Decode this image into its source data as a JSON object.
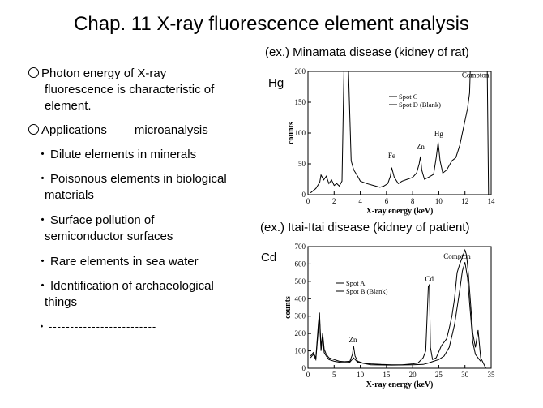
{
  "slide": {
    "title": "Chap. 11  X-ray fluorescence element analysis",
    "bullet1": [
      "Photon energy of X-ray",
      "fluorescence is characteristic of",
      "element."
    ],
    "bullet2_label": "Applications",
    "bullet2_rest": "microanalysis",
    "sub_items": [
      [
        "Dilute elements in minerals"
      ],
      [
        "Poisonous elements in biological",
        "materials"
      ],
      [
        "Surface pollution of",
        "semiconductor surfaces"
      ],
      [
        "Rare elements in sea water"
      ],
      [
        "Identification of archaeological",
        "things"
      ]
    ],
    "last_sub_dashes": "-------------------------"
  },
  "chart_data": [
    {
      "type": "line",
      "caption": "(ex.) Minamata disease (kidney of rat)",
      "element_label": "Hg",
      "xlabel": "X-ray energy (keV)",
      "ylabel": "counts",
      "xlim": [
        0,
        14
      ],
      "ylim": [
        0,
        200
      ],
      "xticks": [
        0,
        2,
        4,
        6,
        8,
        10,
        12,
        14
      ],
      "yticks": [
        0,
        50,
        100,
        150,
        200
      ],
      "legend": [
        "Spot C",
        "Spot D (Blank)"
      ],
      "peak_labels": [
        {
          "text": "Fe",
          "x": 6.4,
          "y": 59
        },
        {
          "text": "Zn",
          "x": 8.6,
          "y": 74
        },
        {
          "text": "Hg",
          "x": 10.0,
          "y": 95
        },
        {
          "text": "Compton",
          "x": 12.8,
          "y": 190
        }
      ],
      "series": [
        {
          "x": [
            0.2,
            0.6,
            0.9,
            1.0,
            1.2,
            1.4,
            1.6,
            1.8,
            2.0,
            2.2,
            2.4,
            2.6,
            2.75,
            2.85,
            2.95,
            3.1,
            3.3,
            3.5,
            3.8,
            4.0,
            4.5,
            5.0,
            5.5,
            5.8,
            6.1,
            6.3,
            6.4,
            6.6,
            6.9,
            7.2,
            7.6,
            8.0,
            8.3,
            8.5,
            8.6,
            8.7,
            8.9,
            9.2,
            9.6,
            9.8,
            9.95,
            10.1,
            10.3,
            10.6,
            11.0,
            11.3,
            11.6,
            11.8,
            12.0,
            12.2,
            12.35,
            12.4
          ],
          "y": [
            3,
            10,
            20,
            32,
            24,
            30,
            18,
            24,
            15,
            18,
            14,
            22,
            200,
            200,
            200,
            200,
            55,
            40,
            30,
            22,
            18,
            15,
            12,
            14,
            18,
            30,
            44,
            28,
            18,
            22,
            25,
            28,
            35,
            50,
            62,
            40,
            25,
            28,
            33,
            60,
            85,
            55,
            35,
            40,
            55,
            60,
            80,
            100,
            120,
            140,
            165,
            200
          ]
        },
        {
          "x": [
            12.45,
            12.6,
            13.0,
            13.5,
            13.7,
            13.8,
            14.0
          ],
          "y": [
            200,
            200,
            200,
            200,
            200,
            0,
            0
          ]
        }
      ]
    },
    {
      "type": "line",
      "caption": "(ex.) Itai-Itai disease (kidney of patient)",
      "element_label": "Cd",
      "xlabel": "X-ray energy (keV)",
      "ylabel": "counts",
      "xlim": [
        0,
        35
      ],
      "ylim": [
        0,
        700
      ],
      "xticks": [
        0,
        5,
        10,
        15,
        20,
        25,
        30,
        35
      ],
      "yticks": [
        0,
        100,
        200,
        300,
        400,
        500,
        600,
        700
      ],
      "legend": [
        "Spot A",
        "Spot B (Blank)"
      ],
      "peak_labels": [
        {
          "text": "Zn",
          "x": 8.6,
          "y": 150
        },
        {
          "text": "Cd",
          "x": 23.2,
          "y": 500
        },
        {
          "text": "Compton",
          "x": 28.5,
          "y": 630
        }
      ],
      "series": [
        {
          "x": [
            0.5,
            1.0,
            1.5,
            2.0,
            2.2,
            2.5,
            2.8,
            3.1,
            3.5,
            4.0,
            5.0,
            6.0,
            7.0,
            8.0,
            8.5,
            8.7,
            9.0,
            9.5,
            10.5,
            12,
            14,
            16,
            18,
            20,
            21,
            22,
            22.5,
            23.0,
            23.2,
            23.4,
            23.8,
            24.5,
            25.5,
            26,
            26.5,
            27,
            27.5,
            28,
            28.5,
            29,
            29.5,
            30,
            30.3,
            30.6,
            31.0,
            31.5,
            32,
            32.5,
            33,
            34
          ],
          "y": [
            70,
            90,
            60,
            260,
            320,
            120,
            200,
            110,
            80,
            60,
            50,
            40,
            38,
            40,
            80,
            130,
            70,
            40,
            30,
            25,
            22,
            20,
            20,
            25,
            30,
            60,
            100,
            470,
            480,
            120,
            50,
            60,
            130,
            150,
            170,
            230,
            300,
            400,
            550,
            600,
            640,
            680,
            650,
            560,
            400,
            200,
            120,
            220,
            60,
            0
          ]
        },
        {
          "x": [
            0.5,
            1.0,
            1.5,
            2.0,
            2.2,
            2.5,
            2.8,
            3.1,
            3.5,
            4.0,
            5.0,
            6.0,
            7.0,
            8.0,
            8.7,
            9.5,
            12,
            16,
            20,
            22,
            23,
            24,
            25,
            26,
            27,
            28,
            29,
            29.5,
            30,
            30.5,
            31,
            31.5,
            32,
            33
          ],
          "y": [
            60,
            80,
            50,
            230,
            290,
            100,
            180,
            90,
            70,
            50,
            40,
            35,
            32,
            35,
            60,
            35,
            20,
            18,
            20,
            22,
            30,
            40,
            50,
            70,
            120,
            250,
            450,
            560,
            610,
            520,
            330,
            150,
            80,
            40
          ]
        }
      ]
    }
  ]
}
